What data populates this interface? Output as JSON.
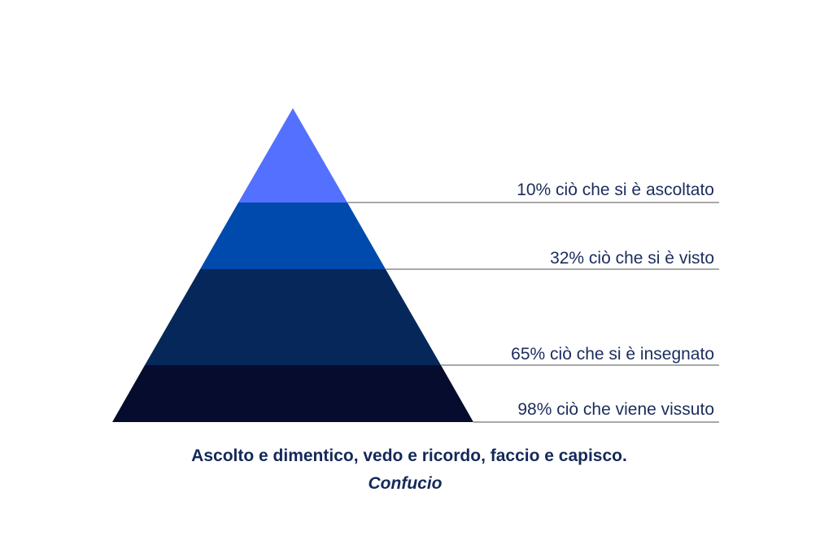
{
  "levels": [
    {
      "label": "10% ciò che si è ascoltato"
    },
    {
      "label": "32% ciò che si è visto"
    },
    {
      "label": "65% ciò che si è insegnato"
    },
    {
      "label": "98% ciò che viene vissuto"
    }
  ],
  "quote": {
    "text": "Ascolto e dimentico, vedo e ricordo, faccio e capisco.",
    "author": "Confucio"
  }
}
